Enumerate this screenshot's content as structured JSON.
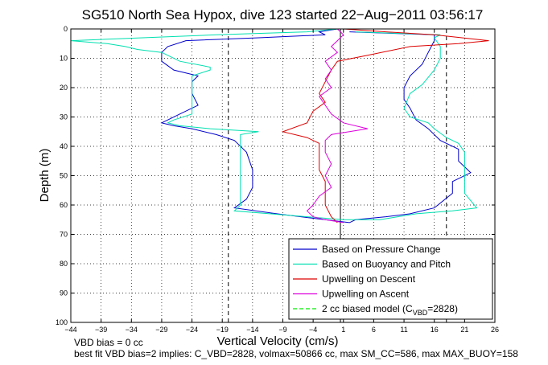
{
  "chart_data": {
    "type": "line",
    "title": "SG510 North Sea Hypox, dive 123 started 22−Aug−2011 03:56:17",
    "xlabel": "Vertical Velocity (cm/s)",
    "ylabel": "Depth (m)",
    "xlim": [
      -44,
      26
    ],
    "ylim": [
      0,
      100
    ],
    "y_reversed": true,
    "grid": true,
    "x_ticks": [
      -44,
      -39,
      -34,
      -29,
      -24,
      -19,
      -14,
      -9,
      -4,
      1,
      6,
      11,
      16,
      21,
      26
    ],
    "x_tick_labels": [
      "−44",
      "−39",
      "−34",
      "−29",
      "−24",
      "−19",
      "−14",
      "−9",
      "−4",
      "1",
      "6",
      "11",
      "16",
      "21",
      "26"
    ],
    "y_ticks": [
      0,
      10,
      20,
      30,
      40,
      50,
      60,
      70,
      80,
      90,
      100
    ],
    "y_tick_labels": [
      "0",
      "10",
      "20",
      "30",
      "40",
      "50",
      "60",
      "70",
      "80",
      "90",
      "100"
    ],
    "legend_position": "bottom-right",
    "legend": [
      {
        "label": "Based on Pressure Change",
        "color": "#0000cc",
        "style": "solid"
      },
      {
        "label": "Based on Buoyancy and Pitch",
        "color": "#00e0b0",
        "style": "solid"
      },
      {
        "label": "Upwelling on Descent",
        "color": "#dd0000",
        "style": "solid"
      },
      {
        "label": "Upwelling on Ascent",
        "color": "#dd00dd",
        "style": "solid"
      },
      {
        "label_main": "2 cc biased model (C",
        "label_sub": "VBD",
        "label_tail": "=2828)",
        "color": "#00ee00",
        "style": "dashed"
      }
    ],
    "reference_lines": [
      {
        "x": -18,
        "style": "dashed",
        "color": "#000000"
      },
      {
        "x": 0.5,
        "style": "solid",
        "color": "#000000"
      },
      {
        "x": 18,
        "style": "dashed",
        "color": "#000000"
      }
    ],
    "series": [
      {
        "name": "Based on Pressure Change",
        "color": "#0000cc",
        "points": [
          [
            0,
            0
          ],
          [
            -3,
            1
          ],
          [
            -2,
            2
          ],
          [
            -13,
            3
          ],
          [
            -25,
            4
          ],
          [
            -28,
            6
          ],
          [
            -29,
            8
          ],
          [
            -29,
            11
          ],
          [
            -27,
            14
          ],
          [
            -23,
            16
          ],
          [
            -24,
            18
          ],
          [
            -24,
            22
          ],
          [
            -23,
            26
          ],
          [
            -26,
            29
          ],
          [
            -28,
            31
          ],
          [
            -29,
            32
          ],
          [
            -27,
            33
          ],
          [
            -24,
            34
          ],
          [
            -20,
            36
          ],
          [
            -17,
            38
          ],
          [
            -15,
            42
          ],
          [
            -14,
            48
          ],
          [
            -14,
            54
          ],
          [
            -15,
            58
          ],
          [
            -17,
            61
          ],
          [
            -10,
            63
          ],
          [
            -2,
            65
          ],
          [
            2,
            66
          ],
          [
            3,
            65
          ],
          [
            8,
            64
          ],
          [
            12,
            63
          ],
          [
            16,
            61
          ],
          [
            19,
            56
          ],
          [
            19,
            52
          ],
          [
            22,
            49
          ],
          [
            20,
            45
          ],
          [
            20,
            41
          ],
          [
            17,
            38
          ],
          [
            15,
            34
          ],
          [
            13,
            31
          ],
          [
            12,
            27
          ],
          [
            11,
            24
          ],
          [
            11,
            20
          ],
          [
            12,
            16
          ],
          [
            14,
            12
          ],
          [
            15,
            8
          ],
          [
            16,
            4
          ],
          [
            16,
            2
          ],
          [
            2,
            1
          ]
        ]
      },
      {
        "name": "Based on Buoyancy and Pitch",
        "color": "#00e0b0",
        "points": [
          [
            0,
            0
          ],
          [
            -5,
            1
          ],
          [
            -20,
            2
          ],
          [
            -44,
            4
          ],
          [
            -38,
            5
          ],
          [
            -35,
            6
          ],
          [
            -33,
            7
          ],
          [
            -29,
            8
          ],
          [
            -28,
            9
          ],
          [
            -26,
            11
          ],
          [
            -21,
            13
          ],
          [
            -21,
            14
          ],
          [
            -24,
            16
          ],
          [
            -24,
            20
          ],
          [
            -24,
            25
          ],
          [
            -24,
            29
          ],
          [
            -27,
            31
          ],
          [
            -28,
            32
          ],
          [
            -26,
            33
          ],
          [
            -21,
            34
          ],
          [
            -13,
            35
          ],
          [
            -16,
            36
          ],
          [
            -16,
            40
          ],
          [
            -16,
            46
          ],
          [
            -16,
            52
          ],
          [
            -16,
            57
          ],
          [
            -16,
            60
          ],
          [
            -17,
            62
          ],
          [
            -5,
            64
          ],
          [
            1,
            65
          ],
          [
            7,
            65
          ],
          [
            13,
            63
          ],
          [
            19,
            62
          ],
          [
            23,
            61
          ],
          [
            21,
            56
          ],
          [
            21,
            50
          ],
          [
            21,
            45
          ],
          [
            21,
            42
          ],
          [
            20,
            39
          ],
          [
            18,
            37
          ],
          [
            16,
            34
          ],
          [
            15,
            32
          ],
          [
            12,
            30
          ],
          [
            11,
            27
          ],
          [
            12,
            22
          ],
          [
            14,
            19
          ],
          [
            16,
            14
          ],
          [
            17,
            10
          ],
          [
            17,
            6
          ],
          [
            16,
            3
          ],
          [
            17,
            2
          ],
          [
            3,
            1
          ]
        ]
      },
      {
        "name": "Upwelling on Descent",
        "color": "#dd0000",
        "points": [
          [
            1,
            0
          ],
          [
            8,
            1
          ],
          [
            16,
            2
          ],
          [
            25,
            4
          ],
          [
            20,
            5
          ],
          [
            12,
            6
          ],
          [
            5,
            9
          ],
          [
            0,
            11
          ],
          [
            -1,
            14
          ],
          [
            -2,
            18
          ],
          [
            -3,
            22
          ],
          [
            -2,
            25
          ],
          [
            -4,
            28
          ],
          [
            -5,
            32
          ],
          [
            -9,
            35
          ],
          [
            -5,
            37
          ],
          [
            -3,
            39
          ],
          [
            -3,
            44
          ],
          [
            -3,
            48
          ],
          [
            -2,
            52
          ],
          [
            -2,
            56
          ],
          [
            -2,
            60
          ],
          [
            -1,
            64
          ],
          [
            0,
            66
          ]
        ]
      },
      {
        "name": "Upwelling on Ascent",
        "color": "#dd00dd",
        "points": [
          [
            1,
            66
          ],
          [
            -2,
            65
          ],
          [
            -4,
            64
          ],
          [
            -5,
            62
          ],
          [
            -4,
            60
          ],
          [
            -3,
            57
          ],
          [
            -1,
            54
          ],
          [
            -2,
            50
          ],
          [
            -1,
            46
          ],
          [
            -2,
            42
          ],
          [
            -2,
            38
          ],
          [
            -1,
            36
          ],
          [
            5,
            34
          ],
          [
            1,
            32
          ],
          [
            -1,
            29
          ],
          [
            -2,
            26
          ],
          [
            -3,
            23
          ],
          [
            -1,
            20
          ],
          [
            -2,
            17
          ],
          [
            -1,
            14
          ],
          [
            -2,
            11
          ],
          [
            0,
            8
          ],
          [
            -1,
            6
          ],
          [
            0,
            4
          ],
          [
            1,
            2
          ],
          [
            0,
            0
          ]
        ]
      }
    ]
  },
  "footer": {
    "vbd_bias_note": "VBD bias = 0 cc",
    "best_fit_note": "best fit VBD bias=2 implies: C_VBD=2828, volmax=50866 cc, max SM_CC=586, max MAX_BUOY=158"
  }
}
